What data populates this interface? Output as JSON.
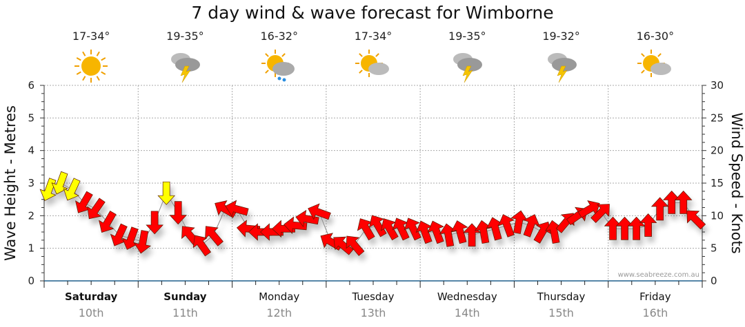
{
  "title": "7 day wind & wave forecast for Wimborne",
  "days": [
    {
      "day": "Saturday",
      "date": "10th",
      "bold": true,
      "temp": "17-34°",
      "icon": "sunny-icon"
    },
    {
      "day": "Sunday",
      "date": "11th",
      "bold": true,
      "temp": "19-35°",
      "icon": "thunderstorm-icon"
    },
    {
      "day": "Monday",
      "date": "12th",
      "bold": false,
      "temp": "16-32°",
      "icon": "partly-cloudy-rain-icon"
    },
    {
      "day": "Tuesday",
      "date": "13th",
      "bold": false,
      "temp": "17-34°",
      "icon": "partly-cloudy-icon"
    },
    {
      "day": "Wednesday",
      "date": "14th",
      "bold": false,
      "temp": "19-35°",
      "icon": "thunderstorm-icon"
    },
    {
      "day": "Thursday",
      "date": "15th",
      "bold": false,
      "temp": "19-32°",
      "icon": "thunderstorm-icon"
    },
    {
      "day": "Friday",
      "date": "16th",
      "bold": false,
      "temp": "16-30°",
      "icon": "partly-cloudy-icon"
    }
  ],
  "credit": "www.seabreeze.com.au",
  "colors": {
    "strong": "#ffff00",
    "normal": "#ff0000",
    "axis": "#1f5f8b"
  },
  "chart_data": {
    "type": "scatter",
    "title": "7 day wind & wave forecast for Wimborne",
    "ylabel_left": "Wave Height - Metres",
    "ylabel_right": "Wind Speed - Knots",
    "ylim_left": [
      0,
      6
    ],
    "ylim_right": [
      0,
      30
    ],
    "yticks_left": [
      "0",
      "1",
      "2",
      "3",
      "4",
      "5",
      "6"
    ],
    "yticks_right": [
      "0",
      "5",
      "10",
      "15",
      "20",
      "25",
      "30"
    ],
    "grid": true,
    "x_interval_hours": 3,
    "strong_threshold_knots": 13.5,
    "wind_knots": [
      14,
      15,
      14,
      12,
      11,
      9,
      7,
      6.5,
      6,
      9,
      13.5,
      10.5,
      7,
      5.5,
      7,
      11,
      11,
      8,
      7.5,
      7.5,
      8,
      8.5,
      9.5,
      10.5,
      6,
      5.5,
      5.5,
      8,
      8.5,
      8,
      8,
      8,
      7.5,
      7.5,
      7,
      7.5,
      7,
      7.5,
      8,
      8.5,
      9,
      8.5,
      7.5,
      7.5,
      9,
      10,
      11,
      10.5,
      8,
      8,
      8,
      8.5,
      11,
      12,
      12,
      9.5
    ],
    "wind_direction_deg": [
      200,
      200,
      205,
      210,
      215,
      210,
      205,
      200,
      190,
      180,
      180,
      180,
      320,
      325,
      320,
      300,
      285,
      275,
      270,
      270,
      270,
      275,
      280,
      290,
      300,
      310,
      320,
      330,
      330,
      330,
      335,
      335,
      340,
      340,
      350,
      345,
      0,
      350,
      345,
      340,
      10,
      20,
      30,
      350,
      40,
      55,
      60,
      45,
      0,
      0,
      0,
      0,
      0,
      0,
      0,
      315
    ]
  }
}
